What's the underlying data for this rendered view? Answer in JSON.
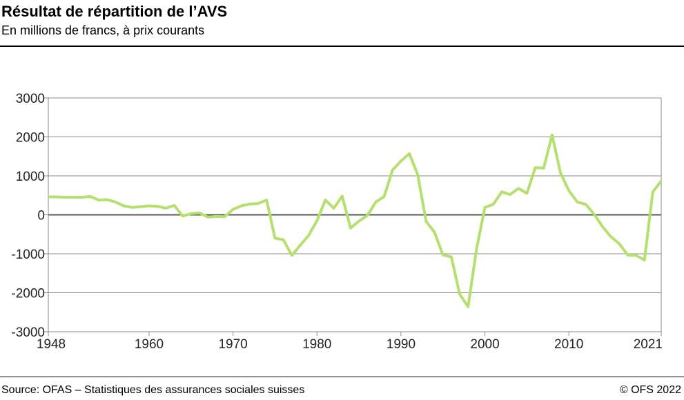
{
  "title": "Résultat de répartition de l’AVS",
  "subtitle": "En millions de francs, à prix courants",
  "source": "Source: OFAS – Statistiques des assurances sociales suisses",
  "copyright": "© OFS 2022",
  "chart_data": {
    "type": "line",
    "title": "Résultat de répartition de l’AVS",
    "xlabel": "",
    "ylabel": "",
    "xlim": [
      1948,
      2021
    ],
    "ylim": [
      -3000,
      3000
    ],
    "yticks": [
      3000,
      2000,
      1000,
      0,
      -1000,
      -2000,
      -3000
    ],
    "xticks": [
      1948,
      1960,
      1970,
      1980,
      1990,
      2000,
      2010,
      2021
    ],
    "grid": true,
    "color": "#b5e06e",
    "x": [
      1948,
      1949,
      1950,
      1951,
      1952,
      1953,
      1954,
      1955,
      1956,
      1957,
      1958,
      1959,
      1960,
      1961,
      1962,
      1963,
      1964,
      1965,
      1966,
      1967,
      1968,
      1969,
      1970,
      1971,
      1972,
      1973,
      1974,
      1975,
      1976,
      1977,
      1978,
      1979,
      1980,
      1981,
      1982,
      1983,
      1984,
      1985,
      1986,
      1987,
      1988,
      1989,
      1990,
      1991,
      1992,
      1993,
      1994,
      1995,
      1996,
      1997,
      1998,
      1999,
      2000,
      2001,
      2002,
      2003,
      2004,
      2005,
      2006,
      2007,
      2008,
      2009,
      2010,
      2011,
      2012,
      2013,
      2014,
      2015,
      2016,
      2017,
      2018,
      2019,
      2020,
      2021
    ],
    "y": [
      460,
      460,
      450,
      450,
      450,
      470,
      380,
      390,
      330,
      230,
      190,
      210,
      230,
      220,
      170,
      240,
      -30,
      30,
      50,
      -60,
      -40,
      -50,
      140,
      230,
      280,
      290,
      380,
      -600,
      -640,
      -1040,
      -780,
      -530,
      -150,
      380,
      170,
      480,
      -340,
      -160,
      -20,
      330,
      470,
      1150,
      1380,
      1570,
      1030,
      -170,
      -450,
      -1030,
      -1080,
      -2040,
      -2360,
      -880,
      190,
      270,
      590,
      520,
      680,
      550,
      1210,
      1200,
      2050,
      1080,
      620,
      330,
      270,
      20,
      -300,
      -560,
      -740,
      -1030,
      -1040,
      -1160,
      590,
      870
    ]
  }
}
